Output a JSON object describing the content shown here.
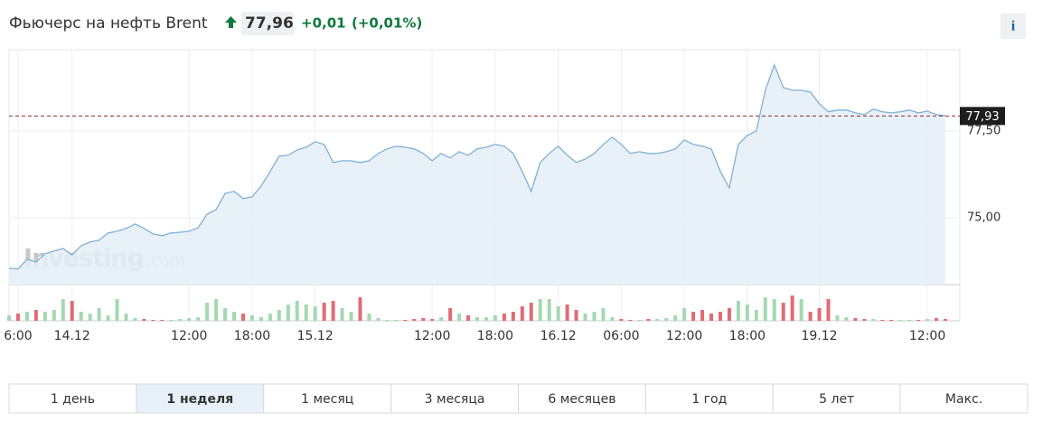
{
  "header": {
    "title": "Фьючерс на нефть Brent",
    "price": "77,96",
    "change": "+0,01",
    "change_pct": "(+0,01%)",
    "info": "i"
  },
  "chart_data": {
    "type": "line",
    "color": "#7fb0d6",
    "fill": "#e4eef6",
    "categories": [
      null,
      "6:00",
      null,
      null,
      null,
      null,
      null,
      "14.12",
      null,
      null,
      null,
      null,
      null,
      null,
      null,
      null,
      null,
      null,
      null,
      null,
      "12:00",
      null,
      null,
      null,
      null,
      null,
      null,
      "18:00",
      null,
      null,
      null,
      null,
      null,
      null,
      "15.12",
      null,
      null,
      null,
      null,
      null,
      null,
      null,
      null,
      null,
      null,
      null,
      null,
      "12:00",
      null,
      null,
      null,
      null,
      null,
      null,
      "18:00",
      null,
      null,
      null,
      null,
      null,
      null,
      "16.12",
      null,
      null,
      null,
      null,
      null,
      null,
      "06:00",
      null,
      null,
      null,
      null,
      null,
      null,
      "12:00",
      null,
      null,
      null,
      null,
      null,
      null,
      "18:00",
      null,
      null,
      null,
      null,
      null,
      null,
      null,
      "19.12",
      null,
      null,
      null,
      null,
      null,
      null,
      null,
      null,
      null,
      null,
      null,
      "12:00",
      null,
      null
    ],
    "values": [
      73.54,
      73.52,
      73.8,
      73.72,
      73.96,
      74.04,
      74.11,
      73.93,
      74.19,
      74.3,
      74.35,
      74.56,
      74.61,
      74.69,
      74.82,
      74.69,
      74.53,
      74.48,
      74.56,
      74.58,
      74.61,
      74.71,
      75.1,
      75.23,
      75.7,
      75.76,
      75.55,
      75.6,
      75.91,
      76.33,
      76.77,
      76.8,
      76.95,
      77.03,
      77.19,
      77.11,
      76.59,
      76.64,
      76.64,
      76.59,
      76.64,
      76.85,
      76.98,
      77.06,
      77.03,
      76.98,
      76.85,
      76.64,
      76.85,
      76.72,
      76.9,
      76.8,
      76.98,
      77.03,
      77.11,
      77.06,
      76.85,
      76.33,
      75.76,
      76.59,
      76.85,
      77.06,
      76.8,
      76.59,
      76.69,
      76.85,
      77.11,
      77.32,
      77.11,
      76.85,
      76.9,
      76.85,
      76.85,
      76.9,
      76.98,
      77.24,
      77.11,
      77.06,
      76.98,
      76.33,
      75.86,
      77.11,
      77.37,
      77.5,
      78.67,
      79.4,
      78.75,
      78.67,
      78.67,
      78.62,
      78.28,
      78.05,
      78.1,
      78.1,
      78.02,
      77.97,
      78.13,
      78.05,
      78.02,
      78.05,
      78.1,
      78.02,
      78.07,
      77.97,
      77.94
    ],
    "ylim": [
      73.07,
      79.84
    ],
    "yticks": [
      {
        "value": 75,
        "label": "75,00"
      },
      {
        "value": 77.5,
        "label": "77,50"
      }
    ],
    "grid": true,
    "last_price": {
      "value": 77.93,
      "label": "77,93"
    },
    "volume": {
      "up_color": "#a3d9b1",
      "down_color": "#e06c75",
      "ylim": [
        0,
        30
      ],
      "values": [
        6,
        8,
        10,
        12,
        10,
        12,
        24,
        22,
        10,
        8,
        14,
        6,
        24,
        8,
        3,
        2,
        1,
        1,
        1,
        2,
        3,
        4,
        20,
        24,
        14,
        10,
        8,
        6,
        4,
        8,
        12,
        18,
        22,
        18,
        16,
        20,
        22,
        14,
        10,
        26,
        8,
        3,
        1,
        1,
        1,
        2,
        3,
        2,
        4,
        14,
        8,
        6,
        4,
        4,
        6,
        8,
        10,
        16,
        20,
        24,
        24,
        16,
        18,
        12,
        8,
        10,
        14,
        4,
        2,
        1,
        1,
        2,
        2,
        3,
        6,
        14,
        10,
        12,
        8,
        10,
        14,
        22,
        18,
        12,
        26,
        24,
        20,
        28,
        24,
        10,
        14,
        24,
        6,
        4,
        3,
        2,
        2,
        1,
        1,
        1,
        1,
        1,
        2,
        3,
        2
      ]
    },
    "watermark": {
      "brand": "Investing",
      "suffix": ".com"
    }
  },
  "range_buttons": {
    "labels": [
      "1 день",
      "1 неделя",
      "1 месяц",
      "3 месяца",
      "6 месяцев",
      "1 год",
      "5 лет",
      "Макс."
    ],
    "active": 1
  }
}
